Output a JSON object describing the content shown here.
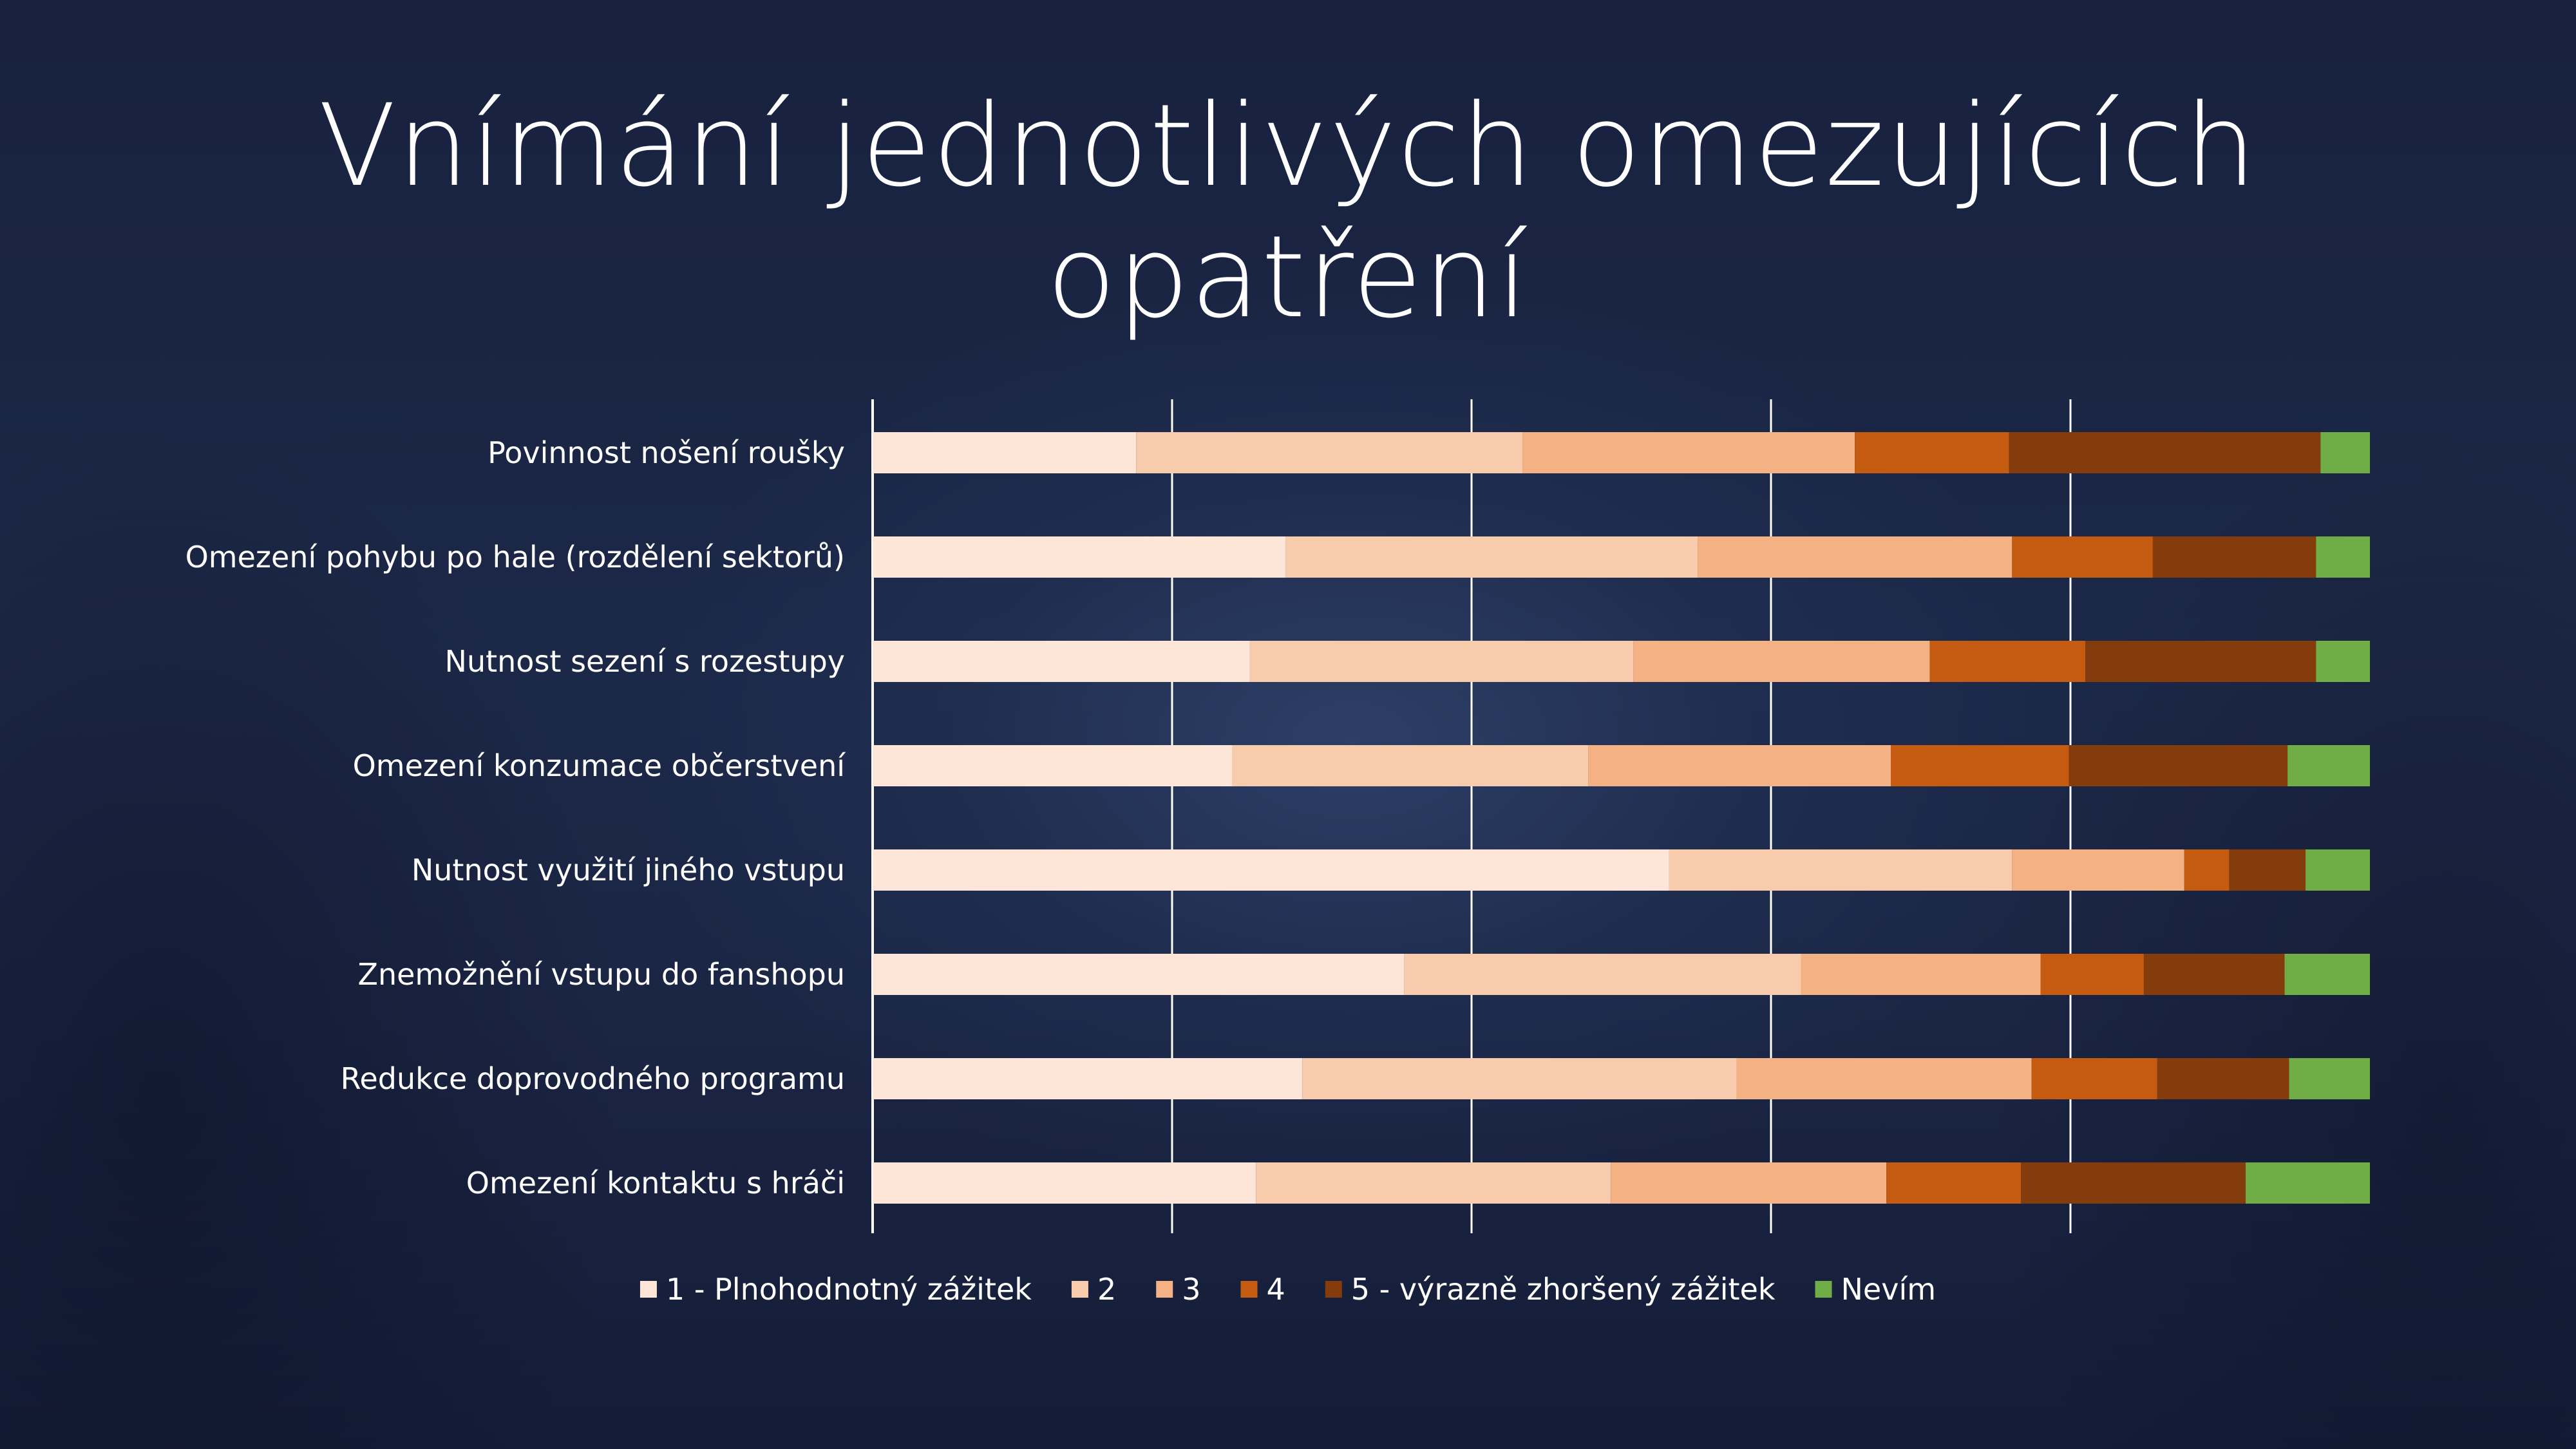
{
  "slide": {
    "title_line1": "Vnímání jednotlivých omezujících",
    "title_line2": "opatření"
  },
  "chart_data": {
    "type": "bar",
    "orientation": "horizontal",
    "stacked": true,
    "percent_stacked": true,
    "title": "Vnímání jednotlivých omezujících opatření",
    "xlabel": "",
    "ylabel": "",
    "xlim": [
      0,
      100
    ],
    "gridlines": "vertical",
    "legend_position": "bottom",
    "categories": [
      "Povinnost nošení roušky",
      "Omezení pohybu po hale (rozdělení sektorů)",
      "Nutnost sezení s rozestupy",
      "Omezení konzumace občerstvení",
      "Nutnost využití jiného vstupu",
      "Znemožnění vstupu do fanshopu",
      "Redukce doprovodného programu",
      "Omezení kontaktu s hráči"
    ],
    "series": [
      {
        "name": "1  - Plnohodnotný zážitek",
        "color": "#fde5d7",
        "values": [
          17.6,
          27.6,
          25.2,
          24.0,
          53.2,
          35.5,
          28.7,
          25.6
        ]
      },
      {
        "name": "2",
        "color": "#f8cbad",
        "values": [
          25.8,
          27.5,
          25.6,
          23.8,
          22.9,
          26.5,
          29.0,
          23.7
        ]
      },
      {
        "name": "3",
        "color": "#f4b183",
        "values": [
          22.2,
          21.0,
          19.8,
          20.2,
          11.5,
          16.0,
          19.7,
          18.4
        ]
      },
      {
        "name": "4",
        "color": "#c55a11",
        "values": [
          10.3,
          9.4,
          10.4,
          11.9,
          3.0,
          6.9,
          8.4,
          9.0
        ]
      },
      {
        "name": "5 - výrazně zhoršený zážitek",
        "color": "#843c0c",
        "values": [
          20.8,
          10.9,
          15.4,
          14.6,
          5.1,
          9.4,
          8.8,
          15.0
        ]
      },
      {
        "name": "Nevím",
        "color": "#70ad47",
        "values": [
          3.3,
          3.6,
          3.6,
          5.5,
          4.3,
          5.7,
          5.4,
          8.3
        ]
      }
    ]
  }
}
